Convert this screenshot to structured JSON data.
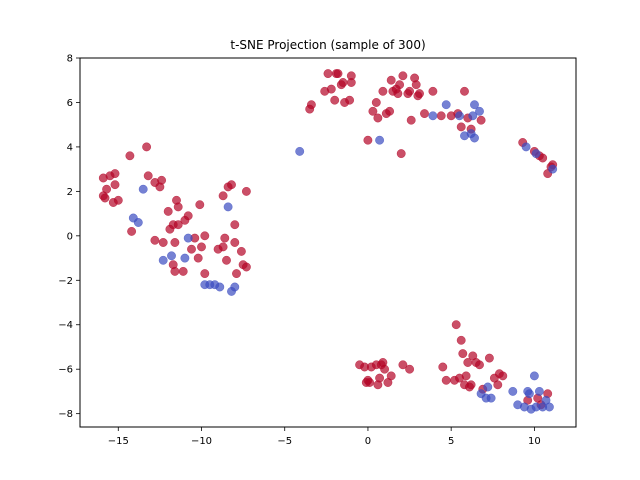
{
  "chart_data": {
    "type": "scatter",
    "title": "t-SNE Projection (sample of 300)",
    "xlabel": "",
    "ylabel": "",
    "xlim": [
      -17.3,
      12.5
    ],
    "ylim": [
      -8.6,
      8.0
    ],
    "xticks": [
      -15,
      -10,
      -5,
      0,
      5,
      10
    ],
    "yticks": [
      -8,
      -6,
      -4,
      -2,
      0,
      2,
      4,
      6,
      8
    ],
    "grid": false,
    "legend": "none",
    "colors": {
      "red": "#b40426",
      "blue": "#3b4cc0"
    },
    "series": [
      {
        "color": "red",
        "points": [
          [
            -15.9,
            2.6
          ],
          [
            -15.5,
            2.7
          ],
          [
            -15.2,
            2.8
          ],
          [
            -15.9,
            1.8
          ],
          [
            -15.8,
            1.7
          ],
          [
            -15.7,
            2.1
          ],
          [
            -15.3,
            1.5
          ],
          [
            -15.0,
            1.6
          ],
          [
            -15.2,
            2.3
          ],
          [
            -14.3,
            3.6
          ],
          [
            -14.2,
            0.2
          ],
          [
            -13.3,
            4.0
          ],
          [
            -13.2,
            2.7
          ],
          [
            -12.8,
            2.4
          ],
          [
            -12.5,
            2.2
          ],
          [
            -12.4,
            2.5
          ],
          [
            -12.8,
            -0.2
          ],
          [
            -12.3,
            -0.3
          ],
          [
            -12.0,
            1.1
          ],
          [
            -11.9,
            0.3
          ],
          [
            -11.7,
            0.5
          ],
          [
            -11.5,
            1.6
          ],
          [
            -11.4,
            1.3
          ],
          [
            -11.6,
            -0.3
          ],
          [
            -11.7,
            -1.3
          ],
          [
            -11.6,
            -1.6
          ],
          [
            -11.4,
            0.5
          ],
          [
            -11.1,
            -1.6
          ],
          [
            -11.0,
            0.7
          ],
          [
            -10.8,
            0.9
          ],
          [
            -10.6,
            -0.6
          ],
          [
            -10.4,
            -0.1
          ],
          [
            -10.1,
            1.4
          ],
          [
            -10.0,
            -0.5
          ],
          [
            -10.2,
            -1.0
          ],
          [
            -9.8,
            -1.7
          ],
          [
            -9.8,
            -0.0
          ],
          [
            -9.0,
            -0.6
          ],
          [
            -8.7,
            -0.5
          ],
          [
            -8.6,
            -0.1
          ],
          [
            -8.5,
            -1.1
          ],
          [
            -8.7,
            1.8
          ],
          [
            -8.4,
            2.2
          ],
          [
            -8.2,
            2.3
          ],
          [
            -8.0,
            0.5
          ],
          [
            -8.0,
            -0.3
          ],
          [
            -7.9,
            -1.7
          ],
          [
            -7.6,
            -0.7
          ],
          [
            -7.5,
            -1.3
          ],
          [
            -7.3,
            -1.4
          ],
          [
            -7.3,
            2.0
          ],
          [
            -3.5,
            5.7
          ],
          [
            -3.4,
            5.9
          ],
          [
            -2.6,
            6.5
          ],
          [
            -2.4,
            7.3
          ],
          [
            -2.2,
            6.6
          ],
          [
            -2.0,
            6.1
          ],
          [
            -1.9,
            7.3
          ],
          [
            -1.8,
            7.3
          ],
          [
            -1.6,
            6.8
          ],
          [
            -1.5,
            6.9
          ],
          [
            -1.4,
            6.0
          ],
          [
            -1.1,
            6.1
          ],
          [
            -1.0,
            7.2
          ],
          [
            -1.0,
            6.9
          ],
          [
            0.0,
            4.3
          ],
          [
            0.3,
            5.6
          ],
          [
            0.5,
            6.0
          ],
          [
            0.6,
            5.3
          ],
          [
            0.9,
            6.5
          ],
          [
            1.1,
            5.5
          ],
          [
            1.3,
            5.6
          ],
          [
            1.4,
            7.0
          ],
          [
            1.5,
            6.5
          ],
          [
            1.7,
            6.6
          ],
          [
            1.8,
            6.4
          ],
          [
            1.9,
            6.8
          ],
          [
            2.1,
            7.2
          ],
          [
            2.0,
            3.7
          ],
          [
            2.4,
            6.4
          ],
          [
            2.5,
            6.5
          ],
          [
            2.6,
            5.2
          ],
          [
            2.8,
            7.1
          ],
          [
            2.9,
            6.8
          ],
          [
            3.0,
            6.3
          ],
          [
            3.1,
            6.4
          ],
          [
            3.4,
            5.5
          ],
          [
            3.9,
            6.5
          ],
          [
            4.4,
            5.4
          ],
          [
            5.0,
            5.4
          ],
          [
            5.4,
            5.5
          ],
          [
            5.6,
            4.9
          ],
          [
            5.8,
            6.5
          ],
          [
            6.0,
            5.3
          ],
          [
            6.2,
            4.8
          ],
          [
            6.8,
            5.2
          ],
          [
            9.3,
            4.2
          ],
          [
            10.0,
            3.8
          ],
          [
            10.3,
            3.6
          ],
          [
            10.5,
            3.5
          ],
          [
            10.8,
            2.8
          ],
          [
            11.1,
            3.2
          ],
          [
            11.0,
            3.1
          ],
          [
            -0.5,
            -5.8
          ],
          [
            -0.2,
            -5.9
          ],
          [
            -0.1,
            -6.6
          ],
          [
            0.0,
            -6.5
          ],
          [
            0.1,
            -6.6
          ],
          [
            0.2,
            -5.9
          ],
          [
            0.5,
            -5.8
          ],
          [
            0.6,
            -6.7
          ],
          [
            0.7,
            -6.4
          ],
          [
            0.8,
            -5.8
          ],
          [
            0.9,
            -5.7
          ],
          [
            1.0,
            -6.0
          ],
          [
            1.2,
            -6.6
          ],
          [
            1.4,
            -6.3
          ],
          [
            2.1,
            -5.8
          ],
          [
            2.5,
            -6.0
          ],
          [
            4.5,
            -5.9
          ],
          [
            4.7,
            -6.5
          ],
          [
            5.2,
            -6.5
          ],
          [
            5.3,
            -4.0
          ],
          [
            5.5,
            -6.4
          ],
          [
            5.6,
            -4.7
          ],
          [
            5.7,
            -5.3
          ],
          [
            5.8,
            -6.7
          ],
          [
            5.9,
            -6.3
          ],
          [
            6.0,
            -5.7
          ],
          [
            6.1,
            -6.8
          ],
          [
            6.2,
            -6.7
          ],
          [
            6.3,
            -5.4
          ],
          [
            6.5,
            -5.7
          ],
          [
            6.7,
            -5.8
          ],
          [
            6.9,
            -6.9
          ],
          [
            7.3,
            -5.5
          ],
          [
            7.6,
            -6.4
          ],
          [
            7.8,
            -6.7
          ],
          [
            7.9,
            -6.2
          ],
          [
            8.1,
            -6.3
          ],
          [
            9.6,
            -7.4
          ],
          [
            10.2,
            -7.3
          ],
          [
            10.4,
            -7.6
          ],
          [
            10.8,
            -7.1
          ]
        ]
      },
      {
        "color": "blue",
        "points": [
          [
            -14.1,
            0.8
          ],
          [
            -13.8,
            0.6
          ],
          [
            -13.5,
            2.1
          ],
          [
            -12.3,
            -1.1
          ],
          [
            -11.8,
            -0.9
          ],
          [
            -11.0,
            -1.0
          ],
          [
            -10.8,
            -0.1
          ],
          [
            -9.8,
            -2.2
          ],
          [
            -9.5,
            -2.2
          ],
          [
            -9.2,
            -2.2
          ],
          [
            -8.9,
            -2.3
          ],
          [
            -8.4,
            1.3
          ],
          [
            -8.2,
            -2.5
          ],
          [
            -8.0,
            -2.3
          ],
          [
            -4.1,
            3.8
          ],
          [
            0.7,
            4.3
          ],
          [
            3.9,
            5.4
          ],
          [
            4.7,
            5.9
          ],
          [
            5.5,
            5.4
          ],
          [
            5.8,
            4.5
          ],
          [
            6.2,
            4.6
          ],
          [
            6.3,
            5.4
          ],
          [
            6.4,
            5.9
          ],
          [
            6.4,
            4.4
          ],
          [
            6.7,
            5.6
          ],
          [
            9.5,
            4.0
          ],
          [
            10.1,
            3.7
          ],
          [
            11.1,
            3.0
          ],
          [
            6.8,
            -7.1
          ],
          [
            7.1,
            -7.3
          ],
          [
            7.2,
            -6.8
          ],
          [
            7.4,
            -7.3
          ],
          [
            8.7,
            -7.0
          ],
          [
            9.0,
            -7.6
          ],
          [
            9.4,
            -7.7
          ],
          [
            9.6,
            -7.0
          ],
          [
            9.7,
            -7.1
          ],
          [
            9.8,
            -7.8
          ],
          [
            10.0,
            -6.3
          ],
          [
            10.1,
            -7.7
          ],
          [
            10.3,
            -7.0
          ],
          [
            10.5,
            -7.7
          ],
          [
            10.7,
            -7.4
          ],
          [
            10.9,
            -7.7
          ]
        ]
      }
    ]
  }
}
